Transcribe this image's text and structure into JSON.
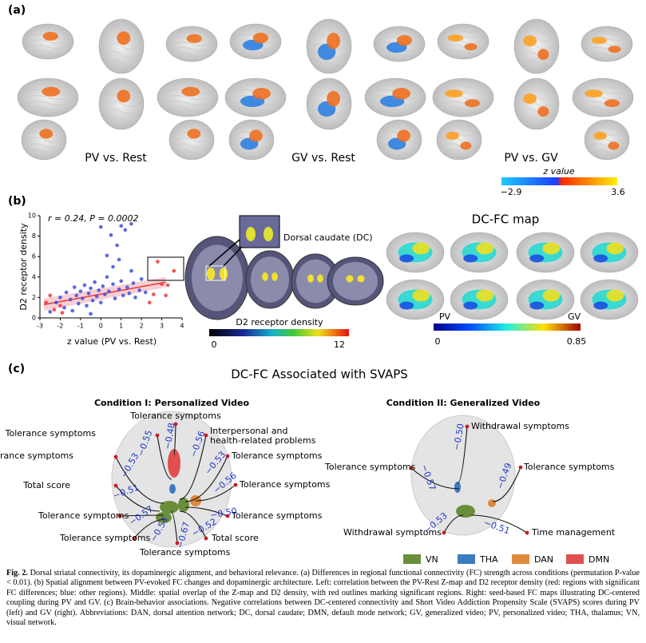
{
  "panel_a": {
    "label": "(a)",
    "titles": [
      "PV vs. Rest",
      "GV vs. Rest",
      "PV vs. GV"
    ],
    "colorbar": {
      "title": "z value",
      "min": "−2.9",
      "max": "3.6"
    }
  },
  "panel_b": {
    "label": "(b)",
    "scatter": {
      "type": "scatter",
      "annotation": "r = 0.24, P = 0.0002",
      "ylabel": "D2 receptor density",
      "xlabel": "z value (PV vs. Rest)",
      "xlim": [
        -3,
        4
      ],
      "ylim": [
        0,
        10
      ],
      "xticks": [
        -3,
        -2,
        -1,
        0,
        1,
        2,
        3,
        4
      ],
      "yticks": [
        0,
        2,
        4,
        6,
        8,
        10
      ],
      "series": [
        {
          "color": "#3b4fe0",
          "x": [
            -2.2,
            -2.0,
            -1.8,
            -1.7,
            -1.5,
            -1.4,
            -1.3,
            -1.2,
            -1.1,
            -1.0,
            -0.9,
            -0.8,
            -0.7,
            -0.6,
            -0.5,
            -0.4,
            -0.3,
            -0.2,
            -0.1,
            0,
            0,
            0.1,
            0.2,
            0.3,
            0.3,
            0.4,
            0.5,
            0.6,
            0.7,
            0.8,
            0.9,
            1.0,
            1.0,
            1.1,
            1.2,
            1.3,
            1.4,
            1.5,
            1.6,
            1.7,
            1.9,
            2.0,
            2.2,
            -2.5,
            -0.5,
            0.6,
            1.5,
            0.9
          ],
          "y": [
            1.5,
            2.0,
            1.0,
            2.5,
            1.8,
            0.7,
            3.0,
            2.2,
            1.4,
            2.6,
            1.9,
            3.2,
            1.2,
            2.4,
            2.9,
            1.7,
            3.5,
            2.1,
            2.7,
            1.5,
            8.9,
            3.1,
            2.3,
            6.1,
            4.0,
            2.6,
            8.1,
            3.3,
            1.9,
            7.1,
            2.8,
            9.0,
            3.6,
            2.2,
            8.6,
            3.0,
            2.4,
            9.2,
            3.4,
            2.0,
            2.7,
            3.8,
            2.5,
            0.6,
            0.4,
            5.0,
            4.6,
            5.7
          ]
        },
        {
          "color": "#e8383b",
          "x": [
            -2.7,
            -2.5,
            -2.3,
            -2.0,
            -1.9,
            2.4,
            2.6,
            2.8,
            3.0,
            3.2,
            3.3,
            3.6
          ],
          "y": [
            1.5,
            2.2,
            0.8,
            1.2,
            0.5,
            1.5,
            2.3,
            5.5,
            3.3,
            2.2,
            3.2,
            4.6
          ]
        }
      ],
      "fit": {
        "color": "#e8383b",
        "x": [
          -2.8,
          3.2
        ],
        "y": [
          1.3,
          3.5
        ]
      }
    },
    "inset_label": "Dorsal caudate (DC)",
    "colorbar_d2": {
      "title": "D2 receptor density",
      "min": "0",
      "max": "12"
    },
    "map_title": "DC-FC map",
    "map_labels": [
      "PV",
      "GV"
    ],
    "colorbar_fc": {
      "min": "0",
      "max": "0.85"
    }
  },
  "panel_c": {
    "label": "(c)",
    "title": "DC-FC Associated with SVAPS",
    "conditions": [
      {
        "title": "Condition I: Personalized Video",
        "items": [
          {
            "text": "Tolerance symptoms",
            "r": "−0.48"
          },
          {
            "text": "Tolerance symptoms",
            "r": "−0.55"
          },
          {
            "text": "Interpersonal and health-related problems",
            "r": "−0.56"
          },
          {
            "text": "Tolerance symptoms",
            "r": "−0.53"
          },
          {
            "text": "Tolerance symptoms",
            "r": "−0.53"
          },
          {
            "text": "Total score",
            "r": "−0.51"
          },
          {
            "text": "Tolerance symptoms",
            "r": "−0.56"
          },
          {
            "text": "Tolerance symptoms",
            "r": "−0.57"
          },
          {
            "text": "Tolerance symptoms",
            "r": "−0.50"
          },
          {
            "text": "Tolerance symptoms",
            "r": "−0.54"
          },
          {
            "text": "Total score",
            "r": "−0.52"
          },
          {
            "text": "Tolerance symptoms",
            "r": "−0.67"
          }
        ]
      },
      {
        "title": "Condition II: Generalized Video",
        "items": [
          {
            "text": "Withdrawal symptoms",
            "r": "−0.50"
          },
          {
            "text": "Tolerance symptoms",
            "r": "−0.57"
          },
          {
            "text": "Tolerance symptoms",
            "r": "−0.49"
          },
          {
            "text": "Withdrawal symptoms",
            "r": "−0.53"
          },
          {
            "text": "Time management",
            "r": "−0.51"
          }
        ]
      }
    ],
    "legend": [
      {
        "name": "VN",
        "color": "#6b8e3a"
      },
      {
        "name": "THA",
        "color": "#3b7bc0"
      },
      {
        "name": "DAN",
        "color": "#e08a3c"
      },
      {
        "name": "DMN",
        "color": "#e05050"
      }
    ]
  },
  "caption": {
    "label": "Fig. 2.",
    "text": "Dorsal striatal connectivity, its dopaminergic alignment, and behavioral relevance. (a) Differences in regional functional connectivity (FC) strength across conditions (permutation P-value < 0.01). (b) Spatial alignment between PV-evoked FC changes and dopaminergic architecture. Left: correlation between the PV-Rest Z-map and D2 receptor density (red: regions with significant FC differences; blue: other regions). Middle: spatial overlap of the Z-map and D2 density, with red outlines marking significant regions. Right: seed-based FC maps illustrating DC-centered coupling during PV and GV. (c) Brain-behavior associations. Negative correlations between DC-centered connectivity and Short Video Addiction Propensity Scale (SVAPS) scores during PV (left) and GV (right). Abbreviations: DAN, dorsal attention network; DC, dorsal caudate; DMN, default mode network; GV, generalized video; PV, personalized video; THA, thalamus; VN, visual network."
  }
}
